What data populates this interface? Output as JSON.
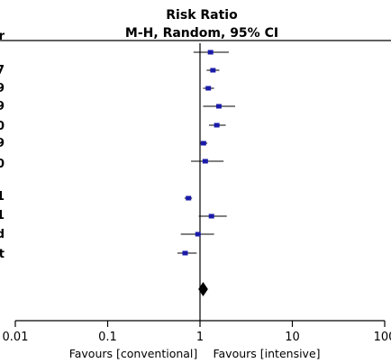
{
  "chart_data": {
    "type": "forest",
    "title": "Risk Ratio",
    "subtitle": "M-H, Random, 95% CI",
    "x_scale": "log",
    "xlim": [
      0.01,
      100
    ],
    "ticks": [
      0.01,
      0.1,
      1,
      10,
      100
    ],
    "tick_labels": [
      "0.01",
      "0.1",
      "1",
      "10",
      "100"
    ],
    "favours_left": "Favours [conventional]",
    "favours_right": "Favours [intensive]",
    "studies": [
      {
        "rr": 1.3,
        "lo": 0.85,
        "hi": 2.05
      },
      {
        "rr": 1.38,
        "lo": 1.18,
        "hi": 1.62
      },
      {
        "rr": 1.23,
        "lo": 1.08,
        "hi": 1.42
      },
      {
        "rr": 1.6,
        "lo": 1.08,
        "hi": 2.4
      },
      {
        "rr": 1.52,
        "lo": 1.25,
        "hi": 1.9
      },
      {
        "rr": 1.09,
        "lo": 1.0,
        "hi": 1.2
      },
      {
        "rr": 1.14,
        "lo": 0.8,
        "hi": 1.8
      },
      {
        "rr": 0.75,
        "lo": 0.68,
        "hi": 0.82
      },
      {
        "rr": 1.33,
        "lo": 0.97,
        "hi": 1.95
      },
      {
        "rr": 0.95,
        "lo": 0.62,
        "hi": 1.42
      },
      {
        "rr": 0.69,
        "lo": 0.57,
        "hi": 0.92
      }
    ],
    "pooled": {
      "rr": 1.08,
      "lo": 0.96,
      "hi": 1.22
    },
    "left_edge_glyphs": [
      "r",
      "7",
      "9",
      "9",
      "0",
      "9",
      "0",
      "1",
      "1",
      "d",
      "t",
      "a"
    ],
    "colors": {
      "marker": "#1a1aaa",
      "line": "#000000"
    }
  }
}
